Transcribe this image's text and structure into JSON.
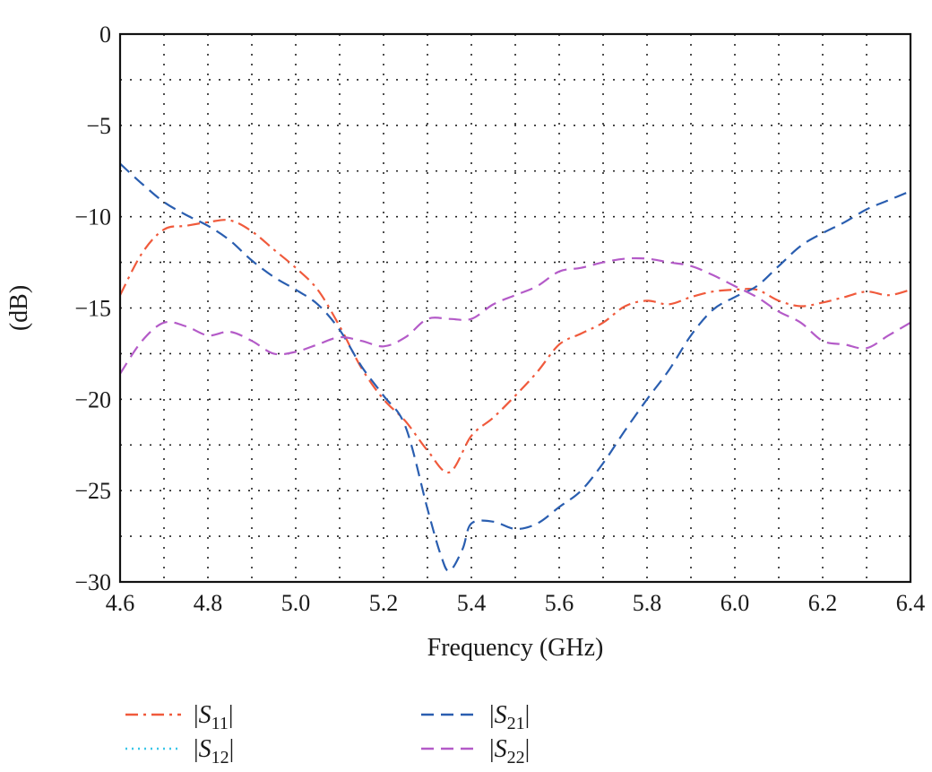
{
  "chart_data": {
    "type": "line",
    "title": "",
    "xlabel": "Frequency (GHz)",
    "ylabel": "(dB)",
    "xlim": [
      4.6,
      6.4
    ],
    "ylim": [
      -30,
      0
    ],
    "xticks": [
      "4.6",
      "4.8",
      "5.0",
      "5.2",
      "5.4",
      "5.6",
      "5.8",
      "6.0",
      "6.2",
      "6.4"
    ],
    "yticks": [
      "0",
      "−5",
      "−10",
      "−15",
      "−20",
      "−25",
      "−30"
    ],
    "grid": true,
    "legend_position": "bottom",
    "series": [
      {
        "name": "|S11|",
        "base": "S",
        "sub": "11",
        "color": "#f05a3c",
        "dash": "dashdot",
        "x": [
          4.6,
          4.65,
          4.7,
          4.75,
          4.8,
          4.85,
          4.9,
          4.95,
          5.0,
          5.05,
          5.1,
          5.15,
          5.2,
          5.25,
          5.3,
          5.35,
          5.4,
          5.45,
          5.5,
          5.55,
          5.6,
          5.65,
          5.7,
          5.75,
          5.8,
          5.85,
          5.9,
          5.95,
          6.0,
          6.05,
          6.1,
          6.15,
          6.2,
          6.25,
          6.3,
          6.35,
          6.4
        ],
        "y": [
          -14.3,
          -12.0,
          -10.7,
          -10.5,
          -10.3,
          -10.2,
          -10.8,
          -11.8,
          -12.8,
          -14.0,
          -16.0,
          -18.3,
          -20.0,
          -21.2,
          -22.8,
          -24.0,
          -22.0,
          -21.0,
          -19.8,
          -18.5,
          -17.0,
          -16.4,
          -15.8,
          -14.9,
          -14.6,
          -14.8,
          -14.4,
          -14.1,
          -14.0,
          -14.0,
          -14.6,
          -14.9,
          -14.7,
          -14.4,
          -14.1,
          -14.3,
          -14.0
        ]
      },
      {
        "name": "|S21|",
        "base": "S",
        "sub": "21",
        "color": "#2a5eb0",
        "dash": "dashed",
        "x": [
          4.6,
          4.65,
          4.7,
          4.75,
          4.8,
          4.85,
          4.9,
          4.95,
          5.0,
          5.05,
          5.1,
          5.15,
          5.2,
          5.25,
          5.3,
          5.33,
          5.35,
          5.38,
          5.4,
          5.45,
          5.5,
          5.55,
          5.6,
          5.65,
          5.7,
          5.75,
          5.8,
          5.85,
          5.9,
          5.95,
          6.0,
          6.05,
          6.1,
          6.15,
          6.2,
          6.25,
          6.3,
          6.35,
          6.4
        ],
        "y": [
          -7.1,
          -8.2,
          -9.2,
          -9.9,
          -10.5,
          -11.3,
          -12.4,
          -13.3,
          -14.0,
          -14.8,
          -16.2,
          -18.2,
          -19.8,
          -21.5,
          -26.0,
          -28.5,
          -29.4,
          -28.2,
          -26.8,
          -26.7,
          -27.1,
          -26.8,
          -25.9,
          -25.0,
          -23.5,
          -21.7,
          -20.0,
          -18.4,
          -16.5,
          -15.1,
          -14.4,
          -13.8,
          -12.7,
          -11.6,
          -10.9,
          -10.3,
          -9.6,
          -9.1,
          -8.6
        ]
      },
      {
        "name": "|S12|",
        "base": "S",
        "sub": "12",
        "color": "#39c6e8",
        "dash": "dotted",
        "x": [],
        "y": []
      },
      {
        "name": "|S22|",
        "base": "S",
        "sub": "22",
        "color": "#b45bc8",
        "dash": "dashed",
        "x": [
          4.6,
          4.65,
          4.7,
          4.75,
          4.8,
          4.85,
          4.9,
          4.95,
          5.0,
          5.05,
          5.1,
          5.15,
          5.2,
          5.25,
          5.3,
          5.35,
          5.4,
          5.45,
          5.5,
          5.55,
          5.6,
          5.65,
          5.7,
          5.75,
          5.8,
          5.85,
          5.9,
          5.95,
          6.0,
          6.05,
          6.1,
          6.15,
          6.2,
          6.25,
          6.3,
          6.35,
          6.4
        ],
        "y": [
          -18.6,
          -16.8,
          -15.8,
          -16.0,
          -16.5,
          -16.3,
          -16.8,
          -17.5,
          -17.4,
          -17.0,
          -16.6,
          -16.8,
          -17.1,
          -16.6,
          -15.6,
          -15.6,
          -15.6,
          -14.8,
          -14.3,
          -13.8,
          -13.0,
          -12.8,
          -12.5,
          -12.3,
          -12.3,
          -12.5,
          -12.7,
          -13.2,
          -13.8,
          -14.4,
          -15.2,
          -15.8,
          -16.8,
          -17.0,
          -17.2,
          -16.5,
          -15.8
        ]
      }
    ]
  }
}
